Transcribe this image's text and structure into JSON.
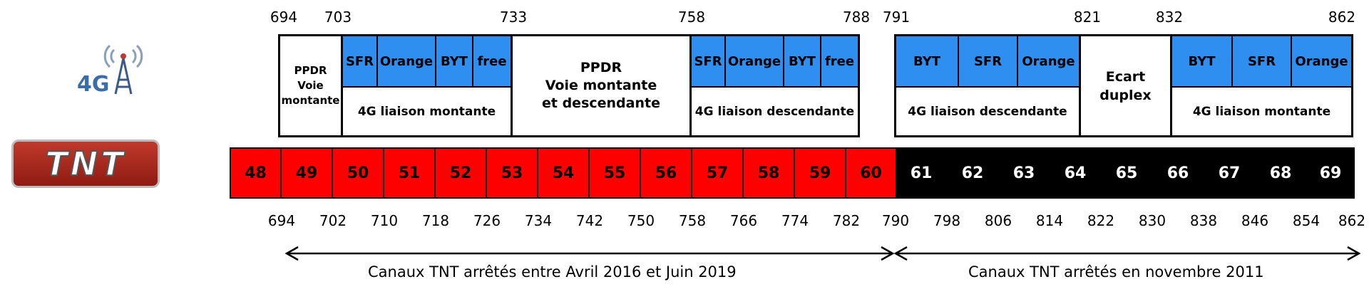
{
  "top_frequencies": [
    "694",
    "703",
    "733",
    "758",
    "788",
    "791",
    "821",
    "832",
    "862"
  ],
  "spectrum_4g": {
    "left_block": {
      "ppdr_up": "PPDR\nVoie\nmontante",
      "operators_up": [
        "SFR",
        "Orange",
        "BYT",
        "free"
      ],
      "uplink_label": "4G liaison montante",
      "ppdr_center": "PPDR\nVoie montante\net descendante",
      "operators_down": [
        "SFR",
        "Orange",
        "BYT",
        "free"
      ],
      "downlink_label": "4G liaison descendante"
    },
    "right_block": {
      "operators_down": [
        "BYT",
        "SFR",
        "Orange"
      ],
      "downlink_label": "4G liaison descendante",
      "duplex_gap": "Ecart\nduplex",
      "operators_up": [
        "BYT",
        "SFR",
        "Orange"
      ],
      "uplink_label": "4G liaison montante"
    }
  },
  "logos": {
    "logo_4g": "4G",
    "logo_tnt": "TNT"
  },
  "channels_red": [
    "48",
    "49",
    "50",
    "51",
    "52",
    "53",
    "54",
    "55",
    "56",
    "57",
    "58",
    "59",
    "60"
  ],
  "channels_black": [
    "61",
    "62",
    "63",
    "64",
    "65",
    "66",
    "67",
    "68",
    "69"
  ],
  "bottom_frequencies": [
    "694",
    "702",
    "710",
    "718",
    "726",
    "734",
    "742",
    "750",
    "758",
    "766",
    "774",
    "782",
    "790",
    "798",
    "806",
    "814",
    "822",
    "830",
    "838",
    "846",
    "854",
    "862"
  ],
  "captions": {
    "left": "Canaux TNT arrêtés entre Avril 2016 et Juin 2019",
    "right": "Canaux TNT arrêtés en novembre 2011"
  },
  "colors": {
    "red": "#ff0000",
    "blue": "#2e8ff0",
    "black": "#000000"
  }
}
